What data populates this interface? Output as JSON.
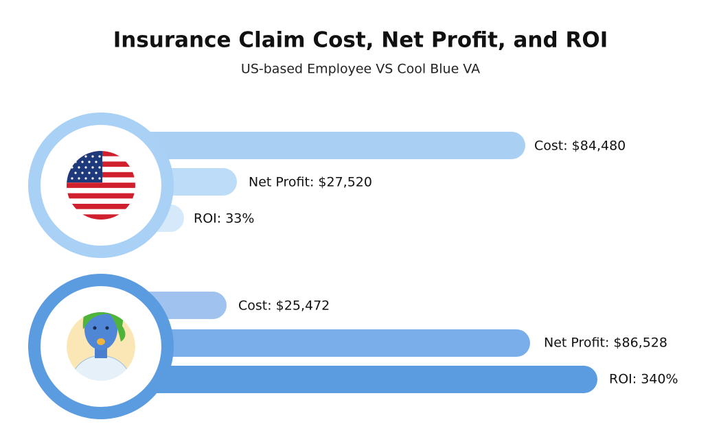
{
  "header": {
    "title": "Insurance Claim Cost, Net Profit, and ROI",
    "subtitle": "US-based Employee VS Cool Blue VA"
  },
  "groups": [
    {
      "name": "US-based Employee",
      "bars": [
        "Cost: $84,480",
        "Net Profit: $27,520",
        "ROI: 33%"
      ]
    },
    {
      "name": "Cool Blue VA",
      "bars": [
        "Cost: $25,472",
        "Net Profit: $86,528",
        "ROI: 340%"
      ]
    }
  ]
}
